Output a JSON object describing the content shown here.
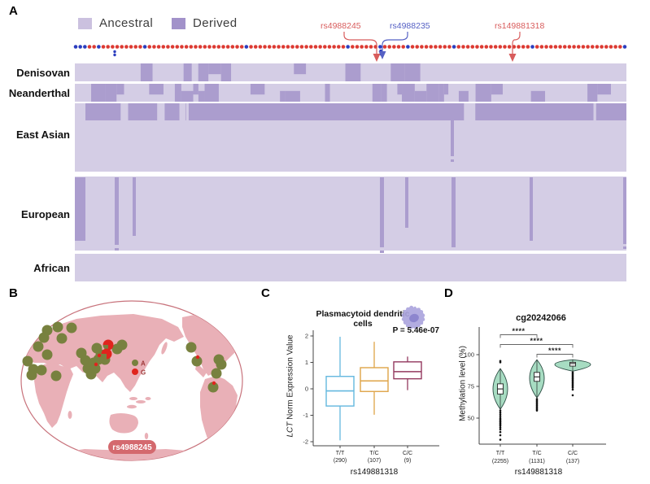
{
  "panels": {
    "a": {
      "label": "A",
      "legend": [
        {
          "label": "Ancestral",
          "color": "#CBC1DF"
        },
        {
          "label": "Derived",
          "color": "#A292CA"
        }
      ],
      "heatmap": {
        "ancestral_color": "#D4CDE5",
        "derived_color": "#AB9DCE",
        "rows": [
          "Denisovan",
          "Neanderthal",
          "East Asian",
          "European",
          "African"
        ]
      },
      "snps": [
        {
          "id": "rs4988245",
          "color": "#D85C5C"
        },
        {
          "id": "rs4988235",
          "color": "#5560C4"
        },
        {
          "id": "rs149881318",
          "color": "#D85C5C"
        }
      ],
      "dots": {
        "red": "#DC3A32",
        "blue": "#2B3DBE"
      }
    },
    "b": {
      "label": "B",
      "legend": [
        {
          "allele": "A",
          "color": "#78813F"
        },
        {
          "allele": "G",
          "color": "#E0241D"
        }
      ],
      "snp_tag": "rs4988245",
      "tag_color": "#D4696E",
      "land_color": "#E9B0B7"
    },
    "c": {
      "label": "C"
    },
    "d": {
      "label": "D"
    }
  },
  "chart_data": [
    {
      "type": "box",
      "title": "Plasmacytoid dendritic cells",
      "p_value": "P = 5.46e-07",
      "ylabel_italic": "LCT",
      "ylabel_rest": " Norm Expression Value",
      "xlabel": "rs149881318",
      "yticks": [
        2,
        1,
        0,
        -1,
        -2
      ],
      "ylim": [
        -2.2,
        2.2
      ],
      "groups": [
        {
          "label": "T/T",
          "n": "(290)",
          "color": "#64B8DF",
          "low": -1.95,
          "q1": -0.65,
          "median": -0.08,
          "q3": 0.47,
          "high": 1.97
        },
        {
          "label": "T/C",
          "n": "(107)",
          "color": "#DFA448",
          "low": -0.98,
          "q1": -0.1,
          "median": 0.3,
          "q3": 0.8,
          "high": 1.78
        },
        {
          "label": "C/C",
          "n": "(9)",
          "color": "#93395F",
          "low": -0.05,
          "q1": 0.38,
          "median": 0.65,
          "q3": 1.02,
          "high": 1.22
        }
      ]
    },
    {
      "type": "violin",
      "title": "cg20242066",
      "ylabel": "Methylation level (%)",
      "xlabel": "rs149881318",
      "yticks": [
        100,
        75,
        50
      ],
      "ylim": [
        30,
        105
      ],
      "fill": "#A7DCC2",
      "stroke": "#2E4F46",
      "groups": [
        {
          "label": "T/T",
          "n": "(2255)",
          "vmin": 57,
          "vmax": 89,
          "center": 73,
          "halfwidth": 9,
          "q1": 69,
          "median": 73,
          "q3": 77,
          "outliers_below": [
            56,
            54.5,
            53,
            51.5,
            50,
            49,
            48,
            47,
            46,
            45,
            44,
            42.5,
            41,
            39,
            36.5,
            33
          ],
          "outliers_above": [
            94,
            95
          ]
        },
        {
          "label": "T/C",
          "n": "(1131)",
          "vmin": 66,
          "vmax": 96,
          "center": 82,
          "halfwidth": 9,
          "q1": 79,
          "median": 82.5,
          "q3": 86,
          "outliers_below": [
            65,
            64,
            63,
            62,
            61,
            60,
            59,
            58,
            57,
            56
          ],
          "outliers_above": []
        },
        {
          "label": "C/C",
          "n": "(137)",
          "vmin": 87,
          "vmax": 96,
          "center": 93,
          "halfwidth": 22,
          "q1": 91,
          "median": 93,
          "q3": 94,
          "outliers_below": [
            86,
            85,
            84,
            83,
            82,
            81,
            80,
            79,
            78,
            77,
            76,
            75,
            74,
            72.5,
            68
          ],
          "outliers_above": []
        }
      ],
      "significance": [
        {
          "from": 0,
          "to": 1,
          "stars": "****"
        },
        {
          "from": 0,
          "to": 2,
          "stars": "****"
        },
        {
          "from": 1,
          "to": 2,
          "stars": "****"
        }
      ]
    }
  ]
}
